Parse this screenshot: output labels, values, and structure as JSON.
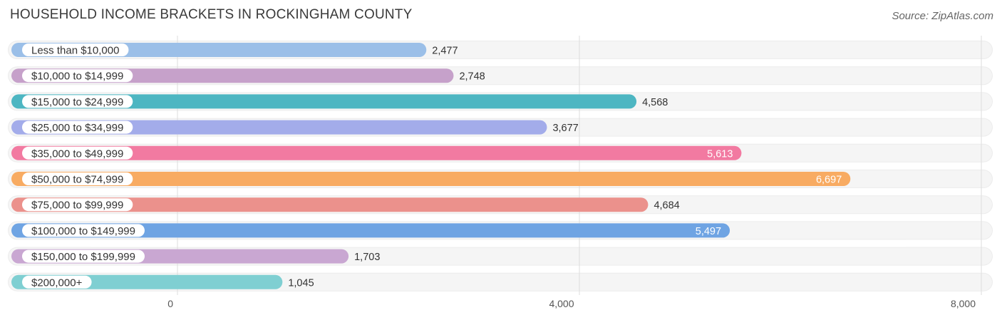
{
  "header": {
    "title": "HOUSEHOLD INCOME BRACKETS IN ROCKINGHAM COUNTY",
    "source": "Source: ZipAtlas.com"
  },
  "chart_data": {
    "type": "bar",
    "orientation": "horizontal",
    "title": "HOUSEHOLD INCOME BRACKETS IN ROCKINGHAM COUNTY",
    "xlabel": "",
    "ylabel": "",
    "xlim": [
      0,
      8000
    ],
    "ticks": [
      0,
      4000,
      8000
    ],
    "tick_labels": [
      "0",
      "4,000",
      "8,000"
    ],
    "grid": true,
    "categories": [
      "Less than $10,000",
      "$10,000 to $14,999",
      "$15,000 to $24,999",
      "$25,000 to $34,999",
      "$35,000 to $49,999",
      "$50,000 to $74,999",
      "$75,000 to $99,999",
      "$100,000 to $149,999",
      "$150,000 to $199,999",
      "$200,000+"
    ],
    "values": [
      2477,
      2748,
      4568,
      3677,
      5613,
      6697,
      4684,
      5497,
      1703,
      1045
    ],
    "value_labels": [
      "2,477",
      "2,748",
      "4,568",
      "3,677",
      "5,613",
      "6,697",
      "4,684",
      "5,497",
      "1,703",
      "1,045"
    ],
    "colors": [
      "#9bbfe8",
      "#c6a1ca",
      "#4db6c2",
      "#a3acea",
      "#f27aa1",
      "#f8ab62",
      "#eb918c",
      "#6fa4e3",
      "#c9a7d2",
      "#7fcfd2"
    ],
    "value_label_inside": [
      false,
      false,
      false,
      false,
      true,
      true,
      false,
      true,
      false,
      false
    ]
  }
}
